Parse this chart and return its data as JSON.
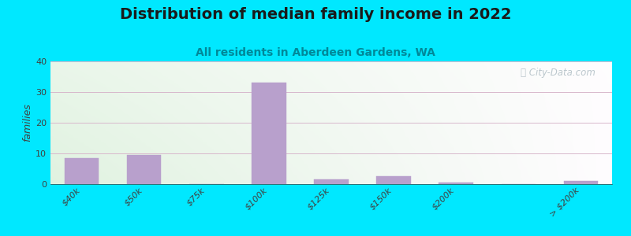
{
  "title": "Distribution of median family income in 2022",
  "subtitle": "All residents in Aberdeen Gardens, WA",
  "categories": [
    "$40k",
    "$50k",
    "$75k",
    "$100k",
    "$125k",
    "$150k",
    "$200k",
    "",
    "> $200k"
  ],
  "values": [
    8.5,
    9.5,
    0,
    33,
    1.5,
    2.5,
    0.5,
    0,
    1.0
  ],
  "bar_color": "#b8a0cc",
  "bar_edgecolor": "#b8a0cc",
  "ylabel": "families",
  "ylim": [
    0,
    40
  ],
  "yticks": [
    0,
    10,
    20,
    30,
    40
  ],
  "background_outer": "#00e8ff",
  "grid_color": "#d8b8cc",
  "title_fontsize": 14,
  "subtitle_fontsize": 10,
  "subtitle_color": "#008899",
  "watermark_text": "ⓘ City-Data.com",
  "watermark_color": "#b0bec5"
}
